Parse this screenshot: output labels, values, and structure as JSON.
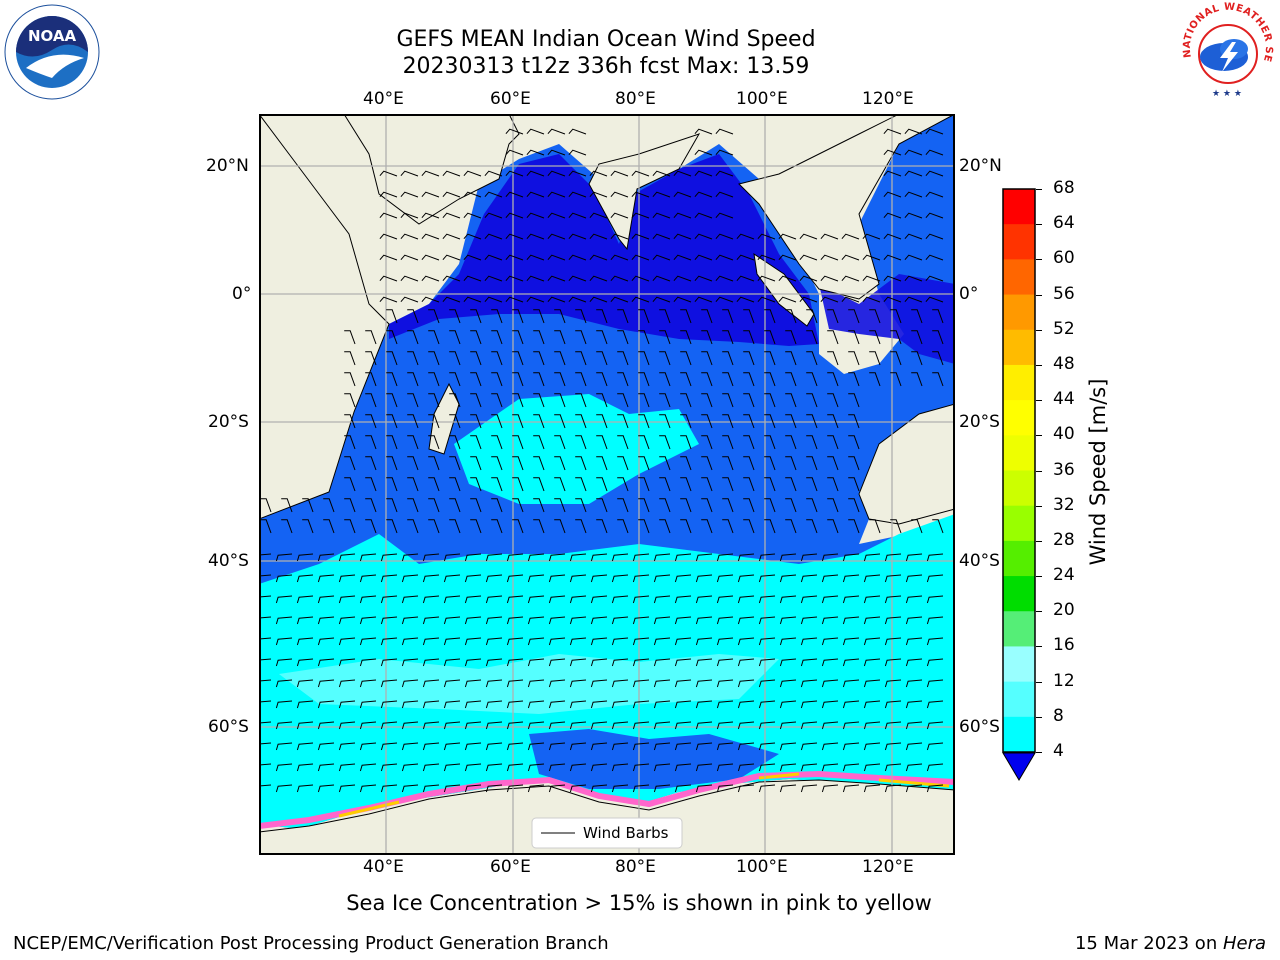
{
  "header": {
    "title_line1": "GEFS MEAN Indian Ocean Wind Speed",
    "title_line2": "20230313 t12z 336h fcst   Max: 13.59"
  },
  "logos": {
    "noaa_text": "NOAA",
    "nws_text": "NATIONAL WEATHER SERVICE"
  },
  "map": {
    "lon_labels": [
      "40°E",
      "60°E",
      "80°E",
      "100°E",
      "120°E"
    ],
    "lat_labels": [
      "20°N",
      "0°",
      "20°S",
      "40°S",
      "60°S"
    ],
    "legend_label": "Wind Barbs",
    "land_color": "#efefe0",
    "sea_ice_colors": [
      "#ff66cc",
      "#ffcc00",
      "#ffff66"
    ]
  },
  "colorbar": {
    "label": "Wind Speed [m/s]",
    "ticks": [
      "68",
      "64",
      "60",
      "56",
      "52",
      "48",
      "44",
      "40",
      "36",
      "32",
      "28",
      "24",
      "20",
      "16",
      "12",
      "8",
      "4"
    ],
    "colors": [
      "#ff0000",
      "#ff3300",
      "#ff6600",
      "#ff9900",
      "#ffbb00",
      "#ffee00",
      "#ffff00",
      "#eeff00",
      "#ccff00",
      "#99ff00",
      "#55ee00",
      "#00dd00",
      "#55ee77",
      "#99ffff",
      "#55ffff",
      "#00ffff",
      "#0066ff"
    ],
    "under_color": "#0000ee"
  },
  "caption": "Sea Ice Concentration > 15% is shown in pink to yellow",
  "footer": {
    "left": "NCEP/EMC/Verification Post Processing Product Generation Branch",
    "right_prefix": "15 Mar 2023 on ",
    "right_host": "Hera"
  }
}
